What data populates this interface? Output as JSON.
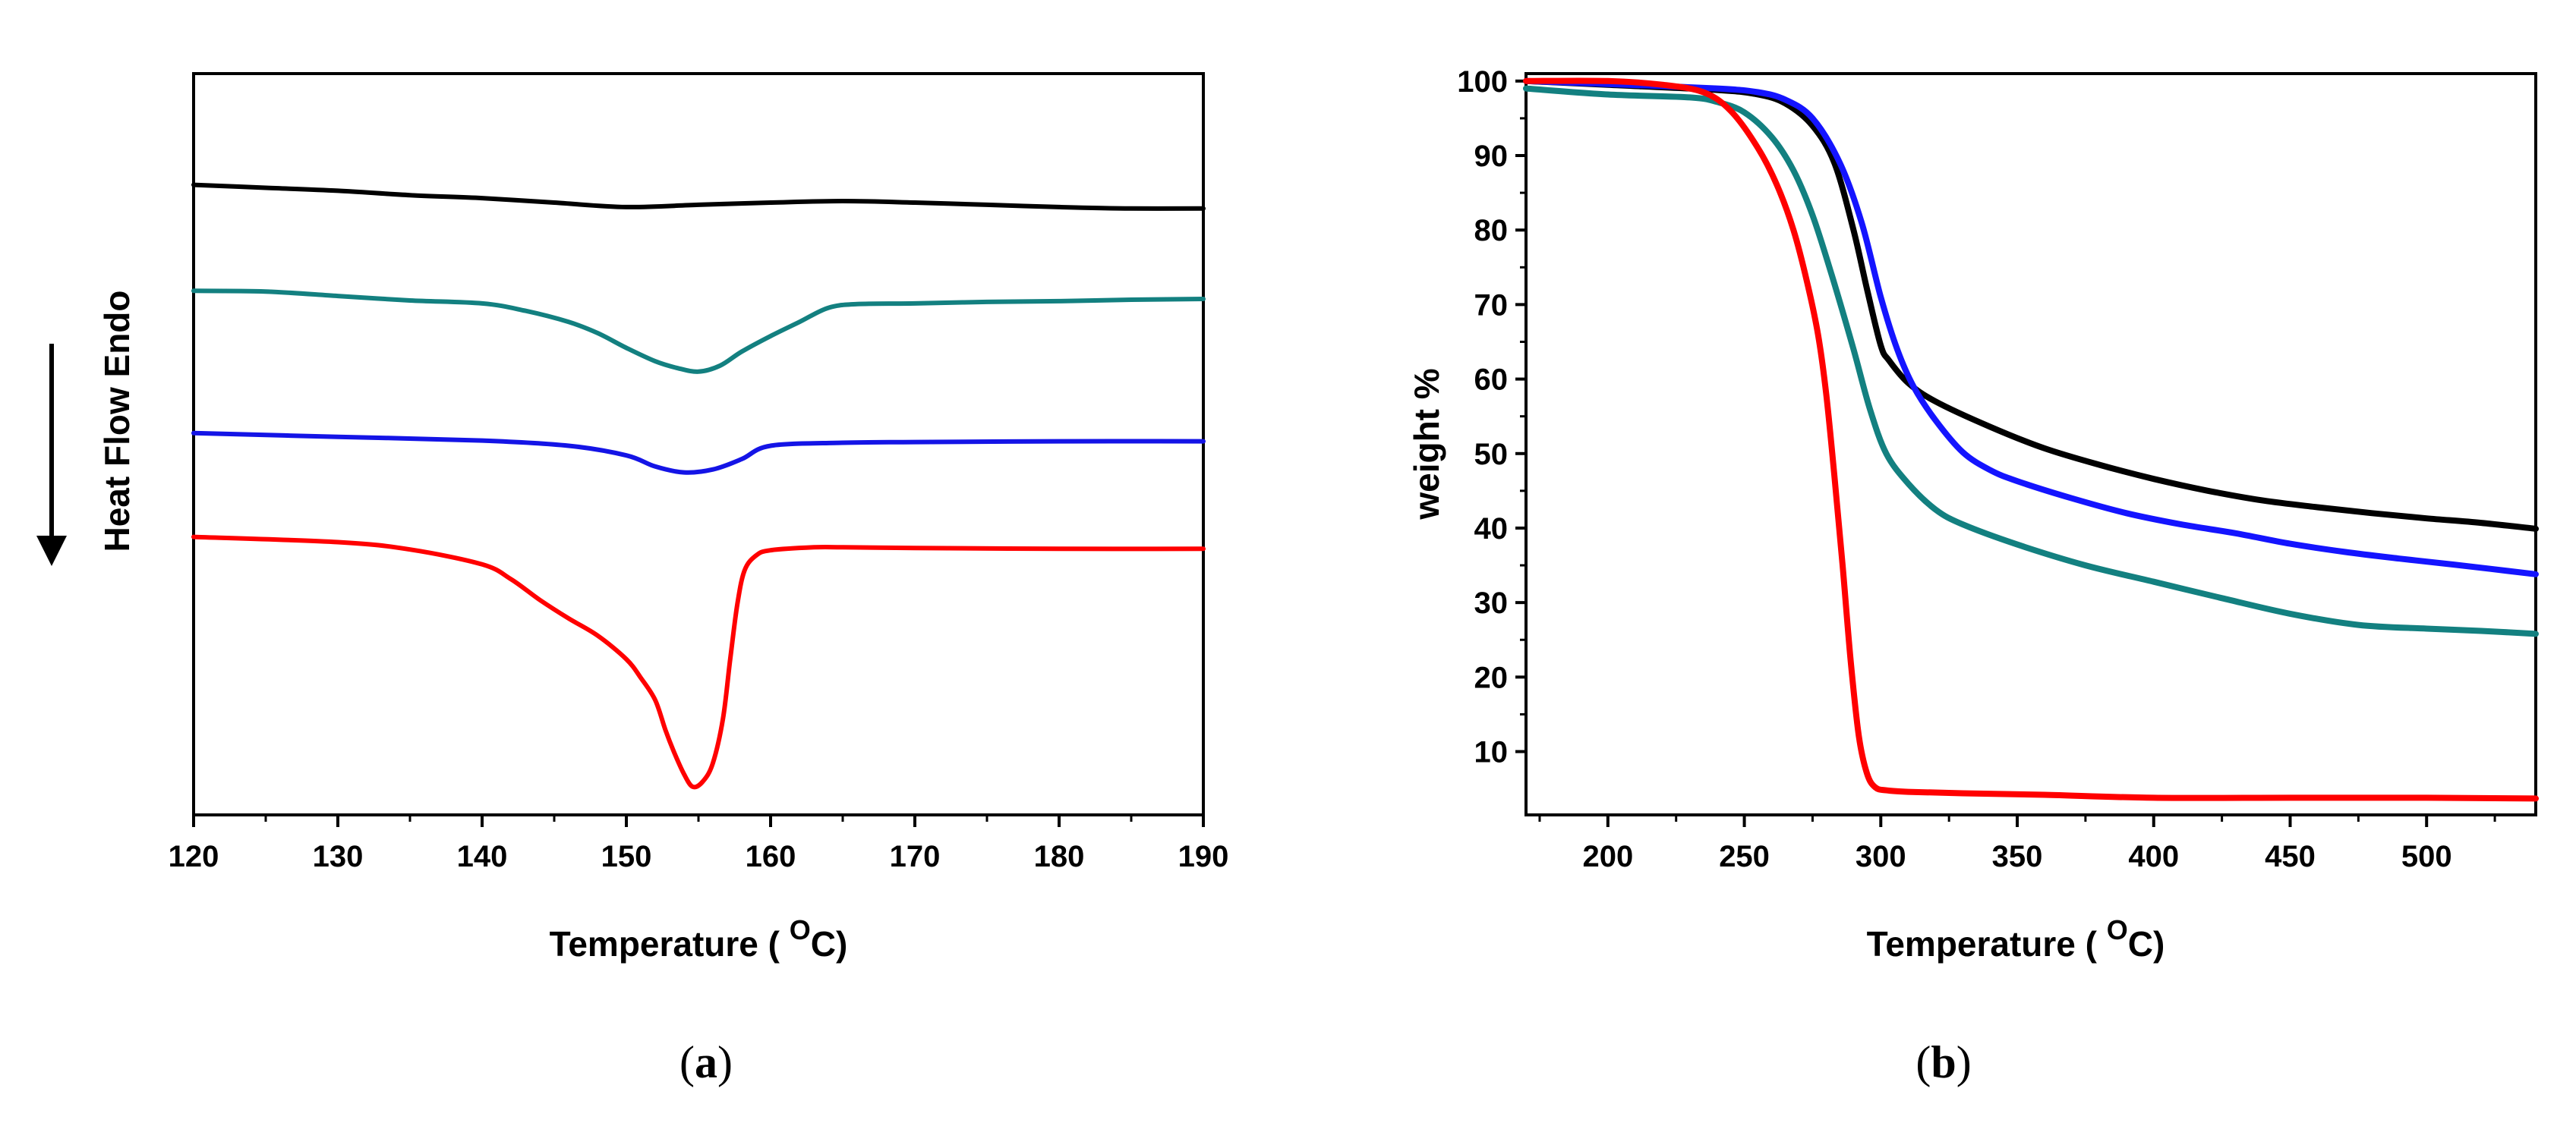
{
  "chart_data": [
    {
      "panel": "a",
      "type": "line",
      "title": "",
      "xlabel_main": "Temperature ( ",
      "xlabel_sup": "O",
      "xlabel_end": "C)",
      "ylabel": "Heat Flow Endo",
      "xlim": [
        120,
        190
      ],
      "ylim": [
        0,
        100
      ],
      "y_axis_labels_shown": false,
      "x_ticks": [
        120,
        130,
        140,
        150,
        160,
        170,
        180,
        190
      ],
      "series": [
        {
          "name": "black",
          "color": "#000000",
          "x": [
            120,
            125,
            130,
            135,
            140,
            145,
            150,
            155,
            160,
            165,
            170,
            175,
            180,
            185,
            190
          ],
          "y": [
            85,
            84.6,
            84.2,
            83.6,
            83.2,
            82.6,
            82.0,
            82.3,
            82.6,
            82.8,
            82.6,
            82.3,
            82.0,
            81.8,
            81.8
          ]
        },
        {
          "name": "teal",
          "color": "#138080",
          "x": [
            120,
            125,
            130,
            135,
            140,
            143,
            146,
            148,
            150,
            152,
            153.5,
            155,
            156.5,
            158,
            160,
            162,
            164,
            166,
            170,
            175,
            180,
            185,
            190
          ],
          "y": [
            70.7,
            70.6,
            70.0,
            69.4,
            69.0,
            68.0,
            66.5,
            65.0,
            63.0,
            61.2,
            60.3,
            59.8,
            60.6,
            62.5,
            64.6,
            66.5,
            68.4,
            68.9,
            69.0,
            69.2,
            69.3,
            69.5,
            69.6
          ]
        },
        {
          "name": "blue",
          "color": "#1414e6",
          "x": [
            120,
            130,
            140,
            146,
            150,
            152,
            154,
            156,
            158,
            160,
            165,
            170,
            180,
            190
          ],
          "y": [
            51.5,
            51.0,
            50.5,
            49.8,
            48.5,
            47.0,
            46.2,
            46.6,
            48.0,
            49.8,
            50.2,
            50.3,
            50.4,
            50.4
          ]
        },
        {
          "name": "red",
          "color": "#ff0000",
          "x": [
            120,
            130,
            135,
            140,
            142,
            144,
            146,
            148,
            150,
            151,
            152,
            152.7,
            153.3,
            154,
            154.6,
            155.3,
            156,
            156.7,
            157.2,
            157.7,
            158.2,
            159,
            160,
            163,
            165,
            170,
            180,
            190
          ],
          "y": [
            37.5,
            36.8,
            35.8,
            33.8,
            31.8,
            29.0,
            26.5,
            24.2,
            21.0,
            18.5,
            15.5,
            11.5,
            8.5,
            5.5,
            3.8,
            4.5,
            7.0,
            13.0,
            21.0,
            28.5,
            33.0,
            35.0,
            35.7,
            36.1,
            36.1,
            36.0,
            35.9,
            35.9
          ]
        }
      ]
    },
    {
      "panel": "b",
      "type": "line",
      "title": "",
      "xlabel_main": "Temperature ( ",
      "xlabel_sup": "O",
      "xlabel_end": "C)",
      "ylabel": "weight %",
      "xlim": [
        170,
        540
      ],
      "ylim": [
        1.5,
        101
      ],
      "x_ticks": [
        200,
        250,
        300,
        350,
        400,
        450,
        500
      ],
      "y_ticks": [
        10,
        20,
        30,
        40,
        50,
        60,
        70,
        80,
        90,
        100
      ],
      "series": [
        {
          "name": "black",
          "color": "#000000",
          "x": [
            170,
            200,
            240,
            255,
            265,
            275,
            283,
            290,
            295,
            300,
            303,
            310,
            320,
            340,
            360,
            380,
            400,
            420,
            440,
            460,
            480,
            500,
            520,
            540
          ],
          "y": [
            100.0,
            99.5,
            98.8,
            98.2,
            97.0,
            94.0,
            89.0,
            80.0,
            72.0,
            64.5,
            62.5,
            59.5,
            57.0,
            53.6,
            50.7,
            48.5,
            46.6,
            45.0,
            43.7,
            42.8,
            42.0,
            41.3,
            40.7,
            39.9
          ]
        },
        {
          "name": "blue",
          "color": "#1414ff",
          "x": [
            170,
            200,
            240,
            255,
            265,
            275,
            285,
            293,
            300,
            306,
            312,
            320,
            330,
            340,
            350,
            370,
            390,
            410,
            430,
            450,
            470,
            490,
            510,
            540
          ],
          "y": [
            100.0,
            99.6,
            99.0,
            98.5,
            97.5,
            95.0,
            89.0,
            81.0,
            71.0,
            64.0,
            59.0,
            54.5,
            50.2,
            47.8,
            46.3,
            44.0,
            42.0,
            40.5,
            39.3,
            37.9,
            36.8,
            35.9,
            35.1,
            33.8
          ]
        },
        {
          "name": "teal",
          "color": "#138080",
          "x": [
            170,
            200,
            230,
            240,
            250,
            260,
            268,
            275,
            282,
            290,
            296,
            302,
            310,
            320,
            330,
            350,
            375,
            400,
            425,
            450,
            475,
            500,
            520,
            540
          ],
          "y": [
            99.0,
            98.2,
            97.8,
            97.2,
            95.8,
            92.5,
            88.0,
            82.0,
            74.0,
            64.0,
            56.0,
            50.0,
            46.0,
            42.5,
            40.5,
            37.8,
            35.0,
            32.8,
            30.6,
            28.5,
            27.0,
            26.5,
            26.2,
            25.8
          ]
        },
        {
          "name": "red",
          "color": "#ff0000",
          "x": [
            170,
            200,
            220,
            235,
            245,
            255,
            262,
            268,
            273,
            277,
            280,
            283,
            286,
            289,
            292,
            295,
            298,
            302,
            310,
            330,
            360,
            400,
            450,
            500,
            540
          ],
          "y": [
            100.0,
            100.0,
            99.5,
            98.5,
            96.0,
            91.0,
            86.0,
            80.0,
            73.0,
            66.0,
            58.0,
            47.0,
            35.0,
            22.0,
            12.0,
            7.0,
            5.2,
            4.8,
            4.6,
            4.4,
            4.2,
            3.8,
            3.8,
            3.8,
            3.7
          ]
        }
      ]
    }
  ],
  "panel_labels": {
    "a": {
      "open": "(",
      "letter": "a",
      "close": ")"
    },
    "b": {
      "open": "(",
      "letter": "b",
      "close": ")"
    }
  }
}
